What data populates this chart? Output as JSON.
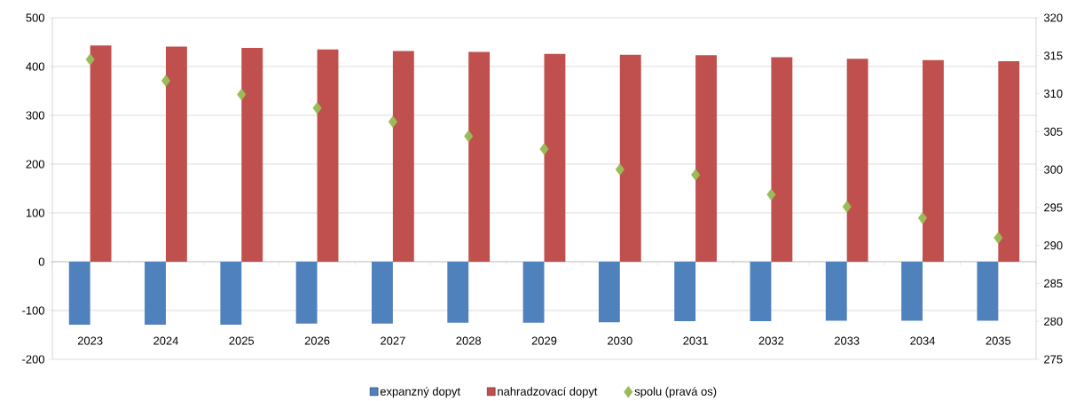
{
  "chart_data": {
    "type": "bar",
    "categories": [
      "2023",
      "2024",
      "2025",
      "2026",
      "2027",
      "2028",
      "2029",
      "2030",
      "2031",
      "2032",
      "2033",
      "2034",
      "2035"
    ],
    "series": [
      {
        "name": "expanzný dopyt",
        "color": "#4f81bd",
        "values": [
          -129,
          -129,
          -129,
          -127,
          -127,
          -125,
          -125,
          -124,
          -122,
          -122,
          -121,
          -121,
          -121
        ]
      },
      {
        "name": "nahradzovací dopyt",
        "color": "#c0504d",
        "values": [
          443,
          441,
          438,
          435,
          432,
          430,
          426,
          424,
          423,
          419,
          416,
          413,
          411
        ]
      },
      {
        "name": "spolu (pravá os)",
        "color": "#9bbb59",
        "type": "scatter",
        "axis": "y2",
        "marker": "diamond",
        "values": [
          314.5,
          311.7,
          309.9,
          308.1,
          306.3,
          304.4,
          302.7,
          300.0,
          299.3,
          296.7,
          295.1,
          293.6,
          291.0
        ]
      }
    ],
    "ylim": [
      -200,
      500
    ],
    "yticks": [
      -200,
      -100,
      0,
      100,
      200,
      300,
      400,
      500
    ],
    "y2lim": [
      275,
      320
    ],
    "y2ticks": [
      275,
      280,
      285,
      290,
      295,
      300,
      305,
      310,
      315,
      320
    ],
    "grid": "y",
    "legend": "bottom"
  }
}
